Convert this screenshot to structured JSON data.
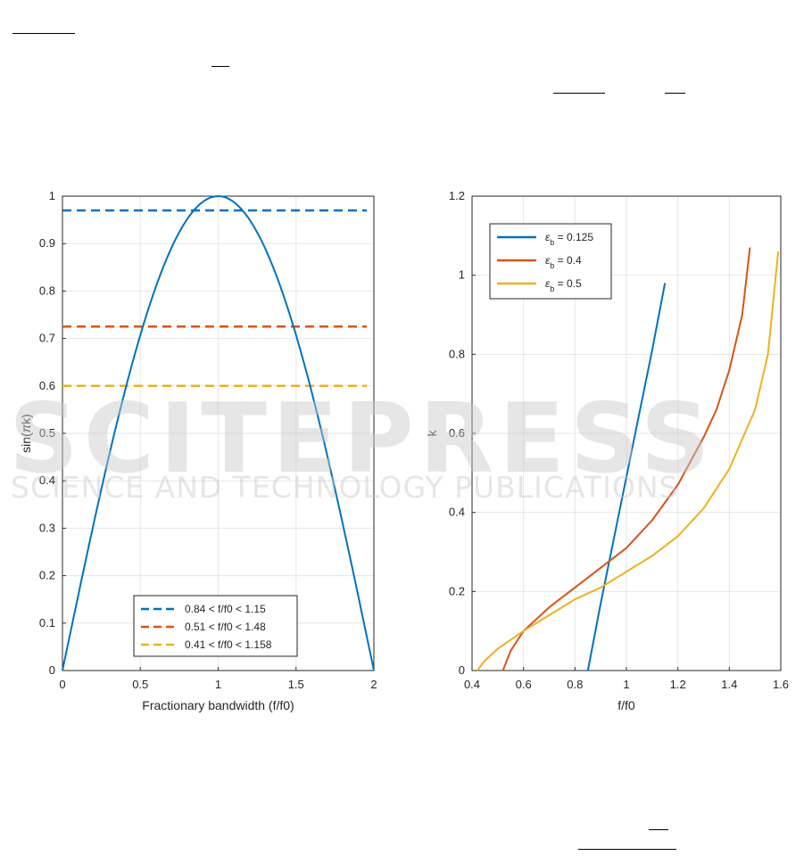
{
  "watermark": {
    "main": "SCITEPRESS",
    "sub": "SCIENCE AND TECHNOLOGY PUBLICATIONS"
  },
  "chart_data": [
    {
      "type": "line",
      "xlabel": "Fractionary bandwidth (f/f0)",
      "ylabel": "sin(πk)",
      "ylabel_parts": {
        "pre": "sin(",
        "greek": "π",
        "post": "k)"
      },
      "xlim": [
        0,
        2
      ],
      "ylim": [
        0,
        1
      ],
      "xticks": [
        "0",
        "0.5",
        "1",
        "1.5",
        "2"
      ],
      "yticks": [
        "0",
        "0.1",
        "0.2",
        "0.3",
        "0.4",
        "0.5",
        "0.6",
        "0.7",
        "0.8",
        "0.9",
        "1"
      ],
      "grid": true,
      "legend_position": "bottom-center",
      "curve": {
        "color": "#0072BD",
        "x": [
          0,
          0.1,
          0.2,
          0.3,
          0.4,
          0.5,
          0.6,
          0.7,
          0.8,
          0.9,
          1.0,
          1.1,
          1.2,
          1.3,
          1.4,
          1.5,
          1.6,
          1.7,
          1.8,
          1.9,
          2.0
        ],
        "y": [
          0,
          0.156,
          0.309,
          0.454,
          0.588,
          0.707,
          0.809,
          0.891,
          0.951,
          0.988,
          1.0,
          0.988,
          0.951,
          0.891,
          0.809,
          0.707,
          0.588,
          0.454,
          0.309,
          0.156,
          0
        ]
      },
      "series": [
        {
          "name": "0.84 < f/f0 < 1.15",
          "y": 0.97,
          "color": "#0072BD",
          "style": "dashed"
        },
        {
          "name": "0.51 < f/f0 < 1.48",
          "y": 0.725,
          "color": "#D95319",
          "style": "dashed"
        },
        {
          "name": "0.41 < f/f0 < 1.158",
          "y": 0.6,
          "color": "#EDB120",
          "style": "dashed"
        }
      ]
    },
    {
      "type": "line",
      "xlabel": "f/f0",
      "ylabel": "k",
      "xlim": [
        0.4,
        1.6
      ],
      "ylim": [
        0,
        1.2
      ],
      "xticks": [
        "0.4",
        "0.6",
        "0.8",
        "1",
        "1.2",
        "1.4",
        "1.6"
      ],
      "yticks": [
        "0",
        "0.2",
        "0.4",
        "0.6",
        "0.8",
        "1",
        "1.2"
      ],
      "grid": true,
      "legend_position": "top-left",
      "series": [
        {
          "name": "ε_b = 0.125",
          "label": {
            "greek": "ε",
            "sub": "b",
            "rest": " = 0.125"
          },
          "color": "#0072BD",
          "x": [
            0.85,
            0.9,
            0.95,
            1.0,
            1.05,
            1.1,
            1.15
          ],
          "y": [
            0.0,
            0.17,
            0.33,
            0.49,
            0.65,
            0.81,
            0.98
          ]
        },
        {
          "name": "ε_b = 0.4",
          "label": {
            "greek": "ε",
            "sub": "b",
            "rest": " = 0.4"
          },
          "color": "#D95319",
          "x": [
            0.52,
            0.55,
            0.6,
            0.7,
            0.8,
            0.9,
            1.0,
            1.1,
            1.2,
            1.3,
            1.35,
            1.4,
            1.45,
            1.48
          ],
          "y": [
            0.0,
            0.05,
            0.1,
            0.16,
            0.21,
            0.26,
            0.31,
            0.38,
            0.47,
            0.59,
            0.66,
            0.76,
            0.9,
            1.07
          ]
        },
        {
          "name": "ε_b = 0.5",
          "label": {
            "greek": "ε",
            "sub": "b",
            "rest": " = 0.5"
          },
          "color": "#EDB120",
          "x": [
            0.42,
            0.45,
            0.5,
            0.6,
            0.7,
            0.8,
            0.9,
            1.0,
            1.1,
            1.2,
            1.3,
            1.4,
            1.5,
            1.55,
            1.59
          ],
          "y": [
            0.0,
            0.025,
            0.055,
            0.1,
            0.14,
            0.18,
            0.21,
            0.25,
            0.29,
            0.34,
            0.41,
            0.51,
            0.66,
            0.8,
            1.06
          ]
        }
      ]
    }
  ]
}
